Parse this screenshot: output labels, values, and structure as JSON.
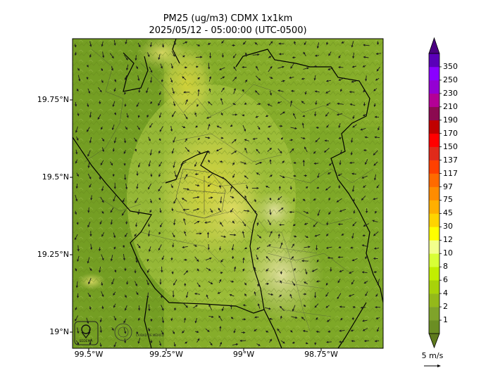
{
  "title_line1": "PM25 (ug/m3) CDMX 1x1km",
  "title_line2": "2025/05/12 - 05:00:00 (UTC-0500)",
  "axes": {
    "lat_ticks": [
      "19.75°N",
      "19.5°N",
      "19.25°N",
      "19°N"
    ],
    "lon_ticks": [
      "99.5°W",
      "99.25°W",
      "99°W",
      "98.75°W"
    ]
  },
  "colorbar": {
    "levels": [
      "1",
      "2",
      "4",
      "6",
      "8",
      "10",
      "12",
      "30",
      "45",
      "75",
      "97",
      "117",
      "137",
      "150",
      "170",
      "190",
      "210",
      "230",
      "250",
      "350"
    ],
    "colors": [
      "#6b8e23",
      "#7fa32a",
      "#94b91a",
      "#a8d20a",
      "#c2ee00",
      "#d8ff36",
      "#f2ff8c",
      "#ffff00",
      "#ffd400",
      "#ffaf00",
      "#ff8c00",
      "#ff6a00",
      "#ff4000",
      "#e02a1a",
      "#ff0000",
      "#c00000",
      "#8b0a50",
      "#b40096",
      "#9400d3",
      "#8a00ff",
      "#5a00b8"
    ],
    "under_color": "#5e7a1d",
    "over_color": "#4b0082"
  },
  "wind_reference": {
    "label": "5 m/s"
  },
  "logos": {
    "left": "SEDEMA",
    "right": "CIUDAD DE MÉXICO"
  }
}
